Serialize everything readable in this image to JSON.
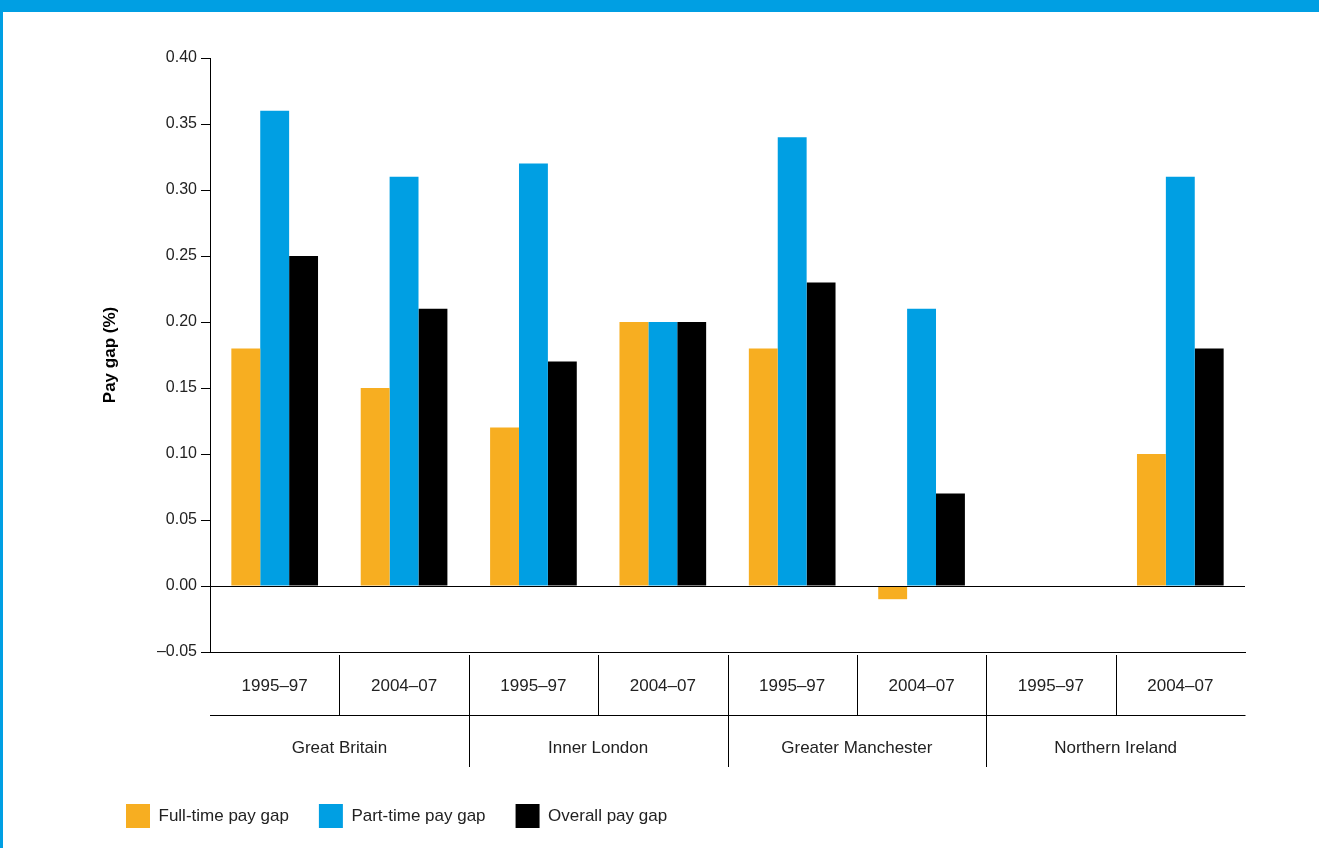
{
  "chart_data": {
    "type": "bar",
    "ylabel": "Pay gap (%)",
    "categories": [
      "1995–97",
      "2004–07",
      "1995–97",
      "2004–07",
      "1995–97",
      "2004–07",
      "1995–97",
      "2004–07"
    ],
    "series": [
      {
        "name": "Full-time pay gap",
        "color": "#f7ae21",
        "values": [
          0.18,
          0.15,
          0.12,
          0.2,
          0.18,
          -0.01,
          null,
          0.1
        ]
      },
      {
        "name": "Part-time pay gap",
        "color": "#009fe3",
        "values": [
          0.36,
          0.31,
          0.32,
          0.2,
          0.34,
          0.21,
          null,
          0.31
        ]
      },
      {
        "name": "Overall pay gap",
        "color": "#000000",
        "values": [
          0.25,
          0.21,
          0.17,
          0.2,
          0.23,
          0.07,
          null,
          0.18
        ]
      }
    ],
    "ylim": [
      -0.05,
      0.4
    ],
    "yticks": [
      {
        "value": -0.05,
        "label": "–0.05"
      },
      {
        "value": 0,
        "label": "0.00"
      },
      {
        "value": 0.05,
        "label": "0.05"
      },
      {
        "value": 0.1,
        "label": "0.10"
      },
      {
        "value": 0.15,
        "label": "0.15"
      },
      {
        "value": 0.2,
        "label": "0.20"
      },
      {
        "value": 0.25,
        "label": "0.25"
      },
      {
        "value": 0.3,
        "label": "0.30"
      },
      {
        "value": 0.35,
        "label": "0.35"
      },
      {
        "value": 0.4,
        "label": "0.40"
      }
    ],
    "ref_lines": [
      {
        "axis": "y",
        "value": 0,
        "color": "#000000"
      }
    ],
    "annotations": [
      "Great Britain",
      "Inner London",
      "Greater Manchester",
      "Northern Ireland"
    ],
    "grid": false,
    "legend": "bottom left"
  }
}
